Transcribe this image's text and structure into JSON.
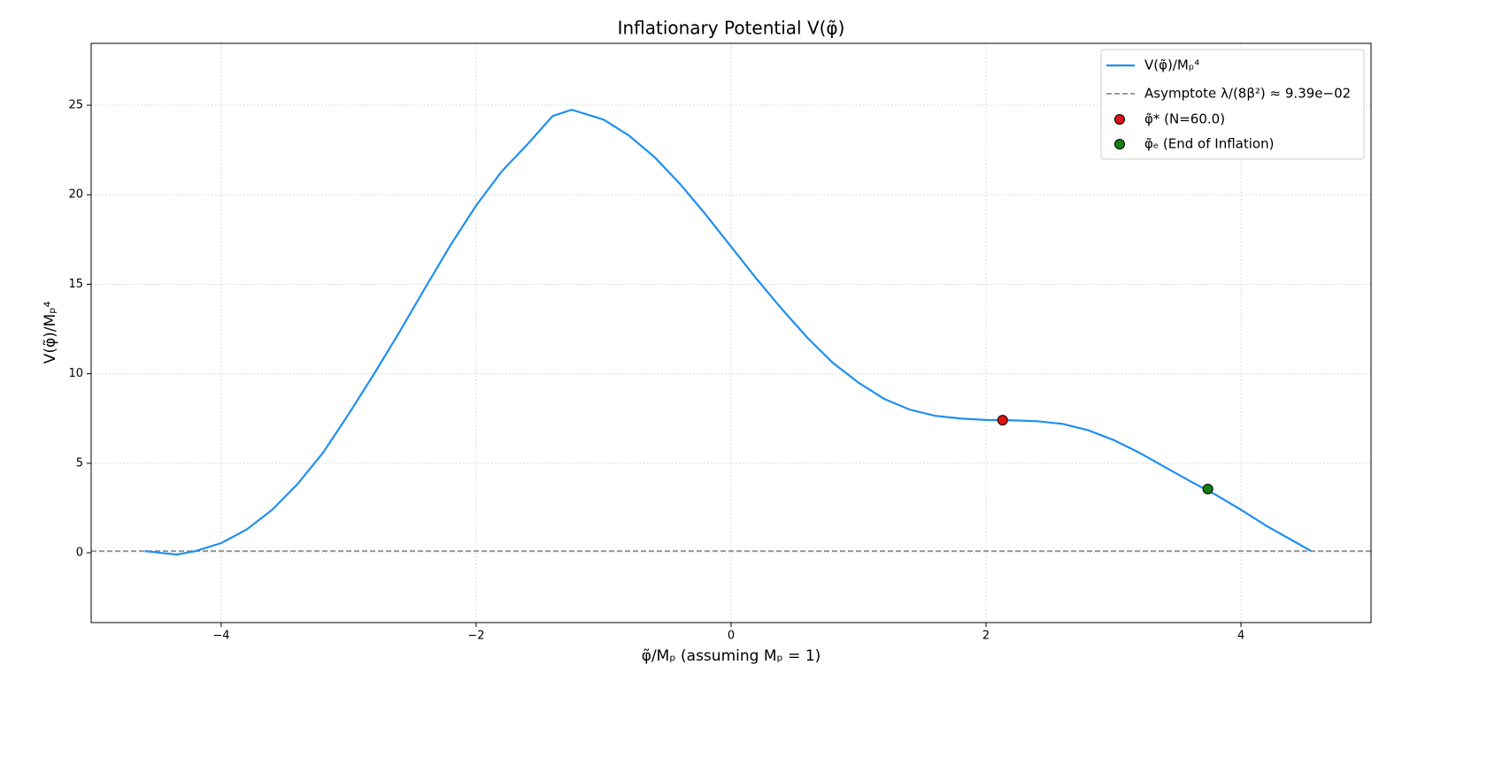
{
  "chart_data": {
    "type": "line",
    "title": "Inflationary Potential V(φ̃)",
    "xlabel": "φ̃/Mₚ (assuming Mₚ = 1)",
    "ylabel": "V(φ̃)/Mₚ⁴",
    "xlim": [
      -5.02,
      5.02
    ],
    "ylim": [
      -3.9,
      28.46
    ],
    "xticks": [
      {
        "value": -4,
        "label": "−4"
      },
      {
        "value": -2,
        "label": "−2"
      },
      0,
      2,
      4
    ],
    "yticks": [
      0,
      5,
      10,
      15,
      20,
      25
    ],
    "grid": true,
    "legend": "upper right",
    "series": [
      {
        "name": "V(φ̃)/Mₚ⁴",
        "color": "#1e8ff0",
        "x": [
          -4.6,
          -4.35,
          -4.2,
          -4.0,
          -3.8,
          -3.6,
          -3.4,
          -3.2,
          -3.0,
          -2.8,
          -2.6,
          -2.4,
          -2.2,
          -2.0,
          -1.8,
          -1.6,
          -1.4,
          -1.25,
          -1.0,
          -0.8,
          -0.6,
          -0.4,
          -0.2,
          0.0,
          0.2,
          0.4,
          0.6,
          0.8,
          1.0,
          1.2,
          1.4,
          1.6,
          1.8,
          2.0,
          2.2,
          2.4,
          2.6,
          2.8,
          3.0,
          3.2,
          3.4,
          3.6,
          3.8,
          4.0,
          4.2,
          4.4,
          4.55
        ],
        "values": [
          0.1,
          -0.1,
          0.1,
          0.54,
          1.3,
          2.4,
          3.85,
          5.6,
          7.75,
          10.0,
          12.35,
          14.8,
          17.2,
          19.4,
          21.3,
          22.8,
          24.4,
          24.75,
          24.2,
          23.3,
          22.1,
          20.6,
          18.9,
          17.1,
          15.3,
          13.6,
          12.0,
          10.6,
          9.5,
          8.6,
          8.0,
          7.65,
          7.5,
          7.42,
          7.4,
          7.35,
          7.2,
          6.85,
          6.3,
          5.6,
          4.8,
          4.0,
          3.25,
          2.4,
          1.5,
          0.7,
          0.1
        ]
      }
    ],
    "hlines": [
      {
        "name": "Asymptote λ/(8β²) ≈ 9.39e−02",
        "value": 0.0939,
        "color": "#7f7f7f"
      }
    ],
    "points": [
      {
        "name": "φ̃* (N=60.0)",
        "color": "#e01010",
        "x": [
          2.13
        ],
        "values": [
          7.41
        ]
      },
      {
        "name": "φ̃ₑ (End of Inflation)",
        "color": "#108010",
        "x": [
          3.74
        ],
        "values": [
          3.56
        ]
      }
    ]
  }
}
